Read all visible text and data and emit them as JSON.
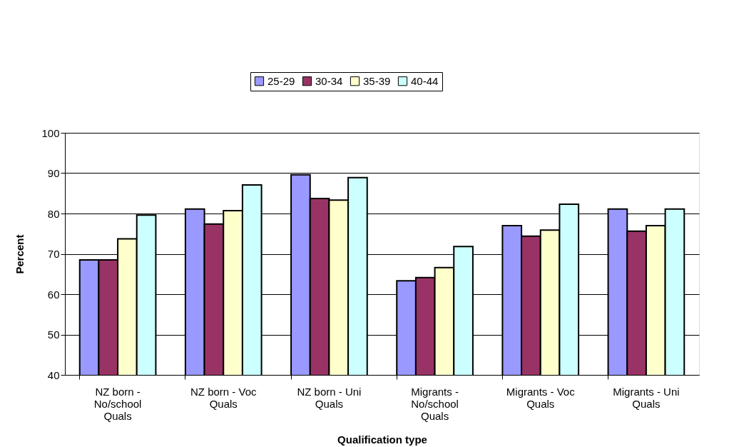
{
  "chart_data": {
    "type": "bar",
    "xlabel": "Qualification type",
    "ylabel": "Percent",
    "categories": [
      "NZ born - No/school Quals",
      "NZ born - Voc Quals",
      "NZ born - Uni Quals",
      "Migrants - No/school Quals",
      "Migrants - Voc Quals",
      "Migrants - Uni Quals"
    ],
    "series": [
      {
        "name": "25-29",
        "color": "#9999ff",
        "values": [
          68.5,
          81.1,
          89.6,
          63.3,
          77.0,
          81.1
        ]
      },
      {
        "name": "30-34",
        "color": "#993366",
        "values": [
          68.5,
          77.4,
          83.7,
          64.1,
          74.4,
          75.6
        ]
      },
      {
        "name": "35-39",
        "color": "#ffffcc",
        "values": [
          73.7,
          80.7,
          83.3,
          66.6,
          75.9,
          77.0
        ]
      },
      {
        "name": "40-44",
        "color": "#ccffff",
        "values": [
          79.6,
          87.1,
          88.9,
          71.8,
          82.3,
          81.1
        ]
      }
    ],
    "ylim": [
      40,
      100
    ],
    "yticks": [
      40,
      50,
      60,
      70,
      80,
      90,
      100
    ],
    "grid": "y",
    "legend": "top"
  }
}
